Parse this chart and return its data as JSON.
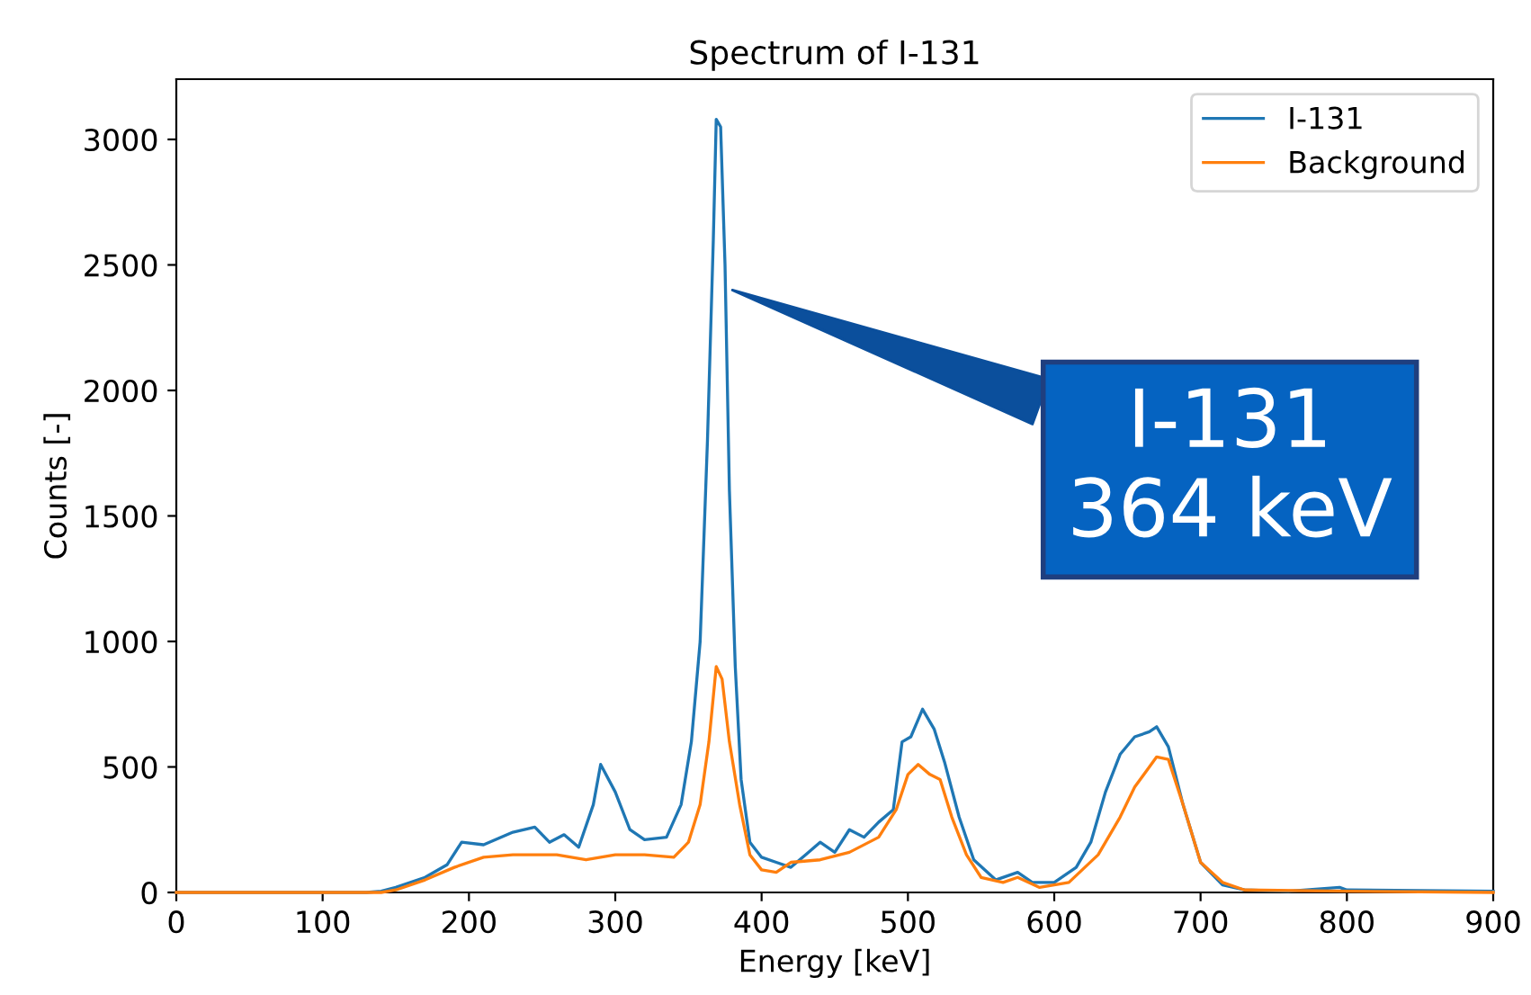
{
  "chart_data": {
    "type": "line",
    "title": "Spectrum of I-131",
    "xlabel": "Energy [keV]",
    "ylabel": "Counts [-]",
    "xlim": [
      0,
      900
    ],
    "ylim": [
      0,
      3240
    ],
    "xticks": [
      0,
      100,
      200,
      300,
      400,
      500,
      600,
      700,
      800,
      900
    ],
    "yticks": [
      0,
      500,
      1000,
      1500,
      2000,
      2500,
      3000
    ],
    "grid": false,
    "legend": "top right",
    "annotations": [
      {
        "text": "I-131\n364 keV",
        "x": 380,
        "y": 2400
      }
    ],
    "series": [
      {
        "name": "I-131",
        "color": "#1f77b4",
        "x": [
          0,
          130,
          140,
          150,
          170,
          185,
          195,
          210,
          230,
          245,
          255,
          265,
          275,
          285,
          290,
          300,
          310,
          320,
          335,
          345,
          352,
          358,
          363,
          367,
          369,
          372,
          375,
          378,
          382,
          386,
          392,
          400,
          410,
          420,
          430,
          440,
          450,
          460,
          470,
          480,
          490,
          496,
          502,
          510,
          518,
          525,
          535,
          545,
          560,
          575,
          585,
          600,
          615,
          625,
          635,
          645,
          655,
          665,
          670,
          678,
          688,
          700,
          715,
          730,
          760,
          795,
          800,
          900
        ],
        "values": [
          0,
          0,
          5,
          20,
          60,
          110,
          200,
          190,
          240,
          260,
          200,
          230,
          180,
          350,
          510,
          400,
          250,
          210,
          220,
          350,
          600,
          1000,
          1800,
          2600,
          3080,
          3050,
          2500,
          1600,
          900,
          450,
          200,
          140,
          120,
          100,
          150,
          200,
          160,
          250,
          220,
          280,
          330,
          600,
          620,
          730,
          650,
          520,
          300,
          130,
          50,
          80,
          40,
          40,
          100,
          200,
          400,
          550,
          620,
          640,
          660,
          580,
          350,
          120,
          30,
          10,
          5,
          20,
          10,
          5
        ]
      },
      {
        "name": "Background",
        "color": "#ff7f0e",
        "x": [
          0,
          140,
          150,
          170,
          190,
          210,
          230,
          260,
          280,
          300,
          320,
          340,
          350,
          358,
          364,
          369,
          373,
          378,
          385,
          392,
          400,
          410,
          420,
          440,
          460,
          480,
          492,
          500,
          507,
          515,
          522,
          530,
          540,
          550,
          565,
          575,
          590,
          610,
          630,
          645,
          655,
          665,
          670,
          678,
          688,
          700,
          715,
          730,
          800,
          900
        ],
        "values": [
          0,
          0,
          10,
          50,
          100,
          140,
          150,
          150,
          130,
          150,
          150,
          140,
          200,
          350,
          600,
          900,
          850,
          600,
          350,
          150,
          90,
          80,
          120,
          130,
          160,
          220,
          330,
          470,
          510,
          470,
          450,
          300,
          150,
          60,
          40,
          60,
          20,
          40,
          150,
          300,
          420,
          500,
          540,
          530,
          350,
          120,
          40,
          10,
          5,
          0
        ]
      }
    ]
  }
}
